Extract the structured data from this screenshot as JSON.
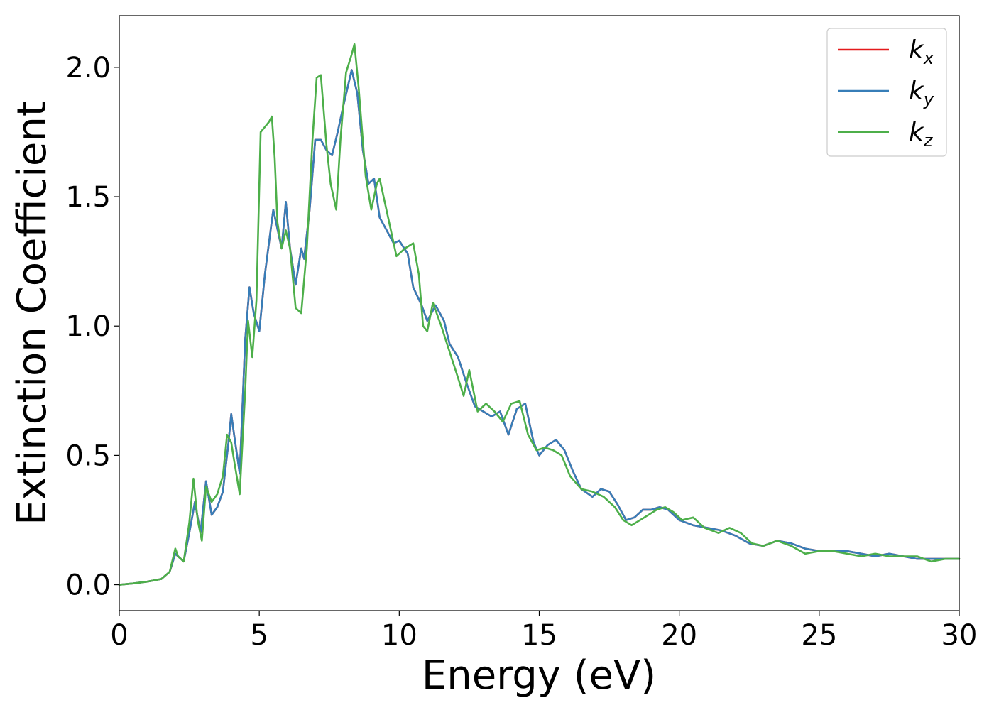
{
  "chart_data": {
    "type": "line",
    "title": "",
    "xlabel": "Energy (eV)",
    "ylabel": "Extinction Coefficient",
    "xlim": [
      0,
      30
    ],
    "ylim": [
      -0.1,
      2.2
    ],
    "xticks": [
      0,
      5,
      10,
      15,
      20,
      25,
      30
    ],
    "xtick_labels": [
      "0",
      "5",
      "10",
      "15",
      "20",
      "25",
      "30"
    ],
    "yticks": [
      0.0,
      0.5,
      1.0,
      1.5,
      2.0
    ],
    "ytick_labels": [
      "0.0",
      "0.5",
      "1.0",
      "1.5",
      "2.0"
    ],
    "grid": false,
    "legend": "top-right",
    "series": [
      {
        "name": "k_x",
        "base": "k",
        "sub": "x",
        "color": "#e41a1c",
        "x": [
          0,
          0.5,
          1,
          1.5,
          1.8,
          2.0,
          2.1,
          2.3,
          2.5,
          2.7,
          2.9,
          3.1,
          3.3,
          3.5,
          3.7,
          3.9,
          4.0,
          4.1,
          4.3,
          4.5,
          4.65,
          4.8,
          5.0,
          5.2,
          5.5,
          5.7,
          5.8,
          5.95,
          6.1,
          6.3,
          6.5,
          6.6,
          6.8,
          7.0,
          7.2,
          7.4,
          7.6,
          7.8,
          8.0,
          8.3,
          8.5,
          8.7,
          8.9,
          9.1,
          9.3,
          9.5,
          9.8,
          10.0,
          10.3,
          10.5,
          10.8,
          11.0,
          11.3,
          11.6,
          11.8,
          12.1,
          12.4,
          12.7,
          13.0,
          13.3,
          13.6,
          13.9,
          14.2,
          14.5,
          14.8,
          15.0,
          15.3,
          15.6,
          15.9,
          16.2,
          16.5,
          16.9,
          17.2,
          17.5,
          17.8,
          18.1,
          18.4,
          18.7,
          19.0,
          19.3,
          19.6,
          20.0,
          20.5,
          21.0,
          21.5,
          22.0,
          22.5,
          23.0,
          23.5,
          24.0,
          24.5,
          25.0,
          25.5,
          26.0,
          26.5,
          27.0,
          27.5,
          28.0,
          28.5,
          29.0,
          29.5,
          30.0
        ],
        "y": [
          0.0,
          0.005,
          0.012,
          0.022,
          0.05,
          0.12,
          0.11,
          0.09,
          0.2,
          0.32,
          0.2,
          0.4,
          0.27,
          0.3,
          0.36,
          0.55,
          0.66,
          0.58,
          0.43,
          0.95,
          1.15,
          1.05,
          0.98,
          1.2,
          1.45,
          1.35,
          1.3,
          1.48,
          1.3,
          1.16,
          1.3,
          1.26,
          1.45,
          1.72,
          1.72,
          1.68,
          1.66,
          1.75,
          1.85,
          1.99,
          1.9,
          1.68,
          1.55,
          1.57,
          1.42,
          1.38,
          1.32,
          1.33,
          1.28,
          1.15,
          1.08,
          1.02,
          1.08,
          1.02,
          0.93,
          0.88,
          0.78,
          0.69,
          0.67,
          0.65,
          0.67,
          0.58,
          0.68,
          0.7,
          0.55,
          0.5,
          0.54,
          0.56,
          0.52,
          0.44,
          0.37,
          0.34,
          0.37,
          0.36,
          0.31,
          0.25,
          0.26,
          0.29,
          0.29,
          0.3,
          0.29,
          0.25,
          0.23,
          0.22,
          0.21,
          0.19,
          0.16,
          0.15,
          0.17,
          0.16,
          0.14,
          0.13,
          0.13,
          0.13,
          0.12,
          0.11,
          0.12,
          0.11,
          0.1,
          0.1,
          0.1,
          0.1
        ]
      },
      {
        "name": "k_y",
        "base": "k",
        "sub": "y",
        "color": "#377eb8",
        "x": [
          0,
          0.5,
          1,
          1.5,
          1.8,
          2.0,
          2.1,
          2.3,
          2.5,
          2.7,
          2.9,
          3.1,
          3.3,
          3.5,
          3.7,
          3.9,
          4.0,
          4.1,
          4.3,
          4.5,
          4.65,
          4.8,
          5.0,
          5.2,
          5.5,
          5.7,
          5.8,
          5.95,
          6.1,
          6.3,
          6.5,
          6.6,
          6.8,
          7.0,
          7.2,
          7.4,
          7.6,
          7.8,
          8.0,
          8.3,
          8.5,
          8.7,
          8.9,
          9.1,
          9.3,
          9.5,
          9.8,
          10.0,
          10.3,
          10.5,
          10.8,
          11.0,
          11.3,
          11.6,
          11.8,
          12.1,
          12.4,
          12.7,
          13.0,
          13.3,
          13.6,
          13.9,
          14.2,
          14.5,
          14.8,
          15.0,
          15.3,
          15.6,
          15.9,
          16.2,
          16.5,
          16.9,
          17.2,
          17.5,
          17.8,
          18.1,
          18.4,
          18.7,
          19.0,
          19.3,
          19.6,
          20.0,
          20.5,
          21.0,
          21.5,
          22.0,
          22.5,
          23.0,
          23.5,
          24.0,
          24.5,
          25.0,
          25.5,
          26.0,
          26.5,
          27.0,
          27.5,
          28.0,
          28.5,
          29.0,
          29.5,
          30.0
        ],
        "y": [
          0.0,
          0.005,
          0.012,
          0.022,
          0.05,
          0.12,
          0.11,
          0.09,
          0.2,
          0.32,
          0.2,
          0.4,
          0.27,
          0.3,
          0.36,
          0.55,
          0.66,
          0.58,
          0.43,
          0.95,
          1.15,
          1.05,
          0.98,
          1.2,
          1.45,
          1.35,
          1.3,
          1.48,
          1.3,
          1.16,
          1.3,
          1.26,
          1.45,
          1.72,
          1.72,
          1.68,
          1.66,
          1.75,
          1.85,
          1.99,
          1.9,
          1.68,
          1.55,
          1.57,
          1.42,
          1.38,
          1.32,
          1.33,
          1.28,
          1.15,
          1.08,
          1.02,
          1.08,
          1.02,
          0.93,
          0.88,
          0.78,
          0.69,
          0.67,
          0.65,
          0.67,
          0.58,
          0.68,
          0.7,
          0.55,
          0.5,
          0.54,
          0.56,
          0.52,
          0.44,
          0.37,
          0.34,
          0.37,
          0.36,
          0.31,
          0.25,
          0.26,
          0.29,
          0.29,
          0.3,
          0.29,
          0.25,
          0.23,
          0.22,
          0.21,
          0.19,
          0.16,
          0.15,
          0.17,
          0.16,
          0.14,
          0.13,
          0.13,
          0.13,
          0.12,
          0.11,
          0.12,
          0.11,
          0.1,
          0.1,
          0.1,
          0.1
        ]
      },
      {
        "name": "k_z",
        "base": "k",
        "sub": "z",
        "color": "#4daf4a",
        "x": [
          0,
          0.5,
          1,
          1.5,
          1.8,
          2.0,
          2.1,
          2.3,
          2.5,
          2.65,
          2.8,
          2.95,
          3.1,
          3.3,
          3.5,
          3.7,
          3.85,
          4.0,
          4.1,
          4.3,
          4.5,
          4.6,
          4.75,
          4.9,
          5.05,
          5.2,
          5.35,
          5.45,
          5.55,
          5.65,
          5.8,
          5.95,
          6.1,
          6.3,
          6.5,
          6.7,
          6.9,
          7.05,
          7.2,
          7.4,
          7.55,
          7.75,
          7.9,
          8.1,
          8.3,
          8.4,
          8.55,
          8.8,
          9.0,
          9.2,
          9.3,
          9.6,
          9.9,
          10.2,
          10.5,
          10.7,
          10.85,
          11.0,
          11.2,
          11.5,
          11.8,
          12.1,
          12.3,
          12.5,
          12.8,
          13.1,
          13.4,
          13.7,
          14.0,
          14.3,
          14.6,
          14.9,
          15.2,
          15.5,
          15.8,
          16.1,
          16.5,
          16.9,
          17.3,
          17.7,
          18.0,
          18.3,
          18.6,
          18.9,
          19.2,
          19.5,
          19.8,
          20.1,
          20.5,
          20.9,
          21.4,
          21.8,
          22.2,
          22.6,
          23.0,
          23.5,
          24.0,
          24.5,
          25.0,
          25.5,
          26.0,
          26.5,
          27.0,
          27.5,
          28.0,
          28.5,
          29.0,
          29.5,
          30.0
        ],
        "y": [
          0.0,
          0.005,
          0.012,
          0.022,
          0.05,
          0.14,
          0.11,
          0.09,
          0.24,
          0.41,
          0.25,
          0.17,
          0.38,
          0.32,
          0.35,
          0.42,
          0.58,
          0.55,
          0.48,
          0.35,
          0.75,
          1.02,
          0.88,
          1.1,
          1.75,
          1.77,
          1.79,
          1.81,
          1.65,
          1.4,
          1.3,
          1.37,
          1.3,
          1.07,
          1.05,
          1.3,
          1.72,
          1.96,
          1.97,
          1.7,
          1.55,
          1.45,
          1.72,
          1.98,
          2.05,
          2.09,
          1.92,
          1.58,
          1.45,
          1.55,
          1.57,
          1.42,
          1.27,
          1.3,
          1.32,
          1.2,
          1.0,
          0.98,
          1.09,
          1.0,
          0.9,
          0.8,
          0.73,
          0.83,
          0.67,
          0.7,
          0.67,
          0.63,
          0.7,
          0.71,
          0.58,
          0.52,
          0.53,
          0.52,
          0.5,
          0.42,
          0.37,
          0.36,
          0.34,
          0.3,
          0.25,
          0.23,
          0.25,
          0.27,
          0.29,
          0.3,
          0.28,
          0.25,
          0.26,
          0.22,
          0.2,
          0.22,
          0.2,
          0.16,
          0.15,
          0.17,
          0.15,
          0.12,
          0.13,
          0.13,
          0.12,
          0.11,
          0.12,
          0.11,
          0.11,
          0.11,
          0.09,
          0.1,
          0.1
        ]
      }
    ]
  }
}
